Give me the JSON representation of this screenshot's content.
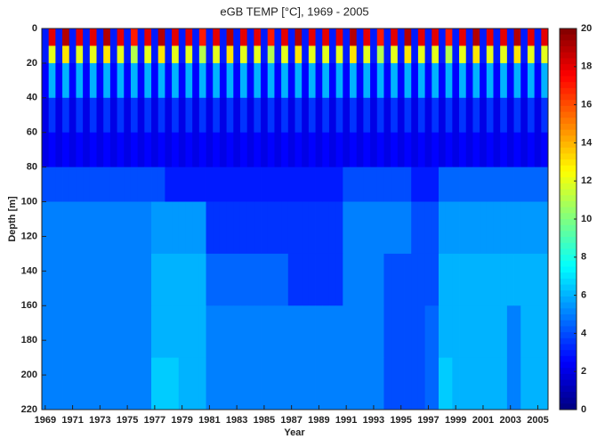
{
  "chart_data": {
    "type": "heatmap",
    "title": "eGB TEMP [°C], 1969 - 2005",
    "xlabel": "Year",
    "ylabel": "Depth [m]",
    "xlim": [
      1968.75,
      2005.75
    ],
    "ylim": [
      0,
      220
    ],
    "xticks": [
      1969,
      1971,
      1973,
      1975,
      1977,
      1979,
      1981,
      1983,
      1985,
      1987,
      1989,
      1991,
      1993,
      1995,
      1997,
      1999,
      2001,
      2003,
      2005
    ],
    "yticks": [
      0,
      20,
      40,
      60,
      80,
      100,
      120,
      140,
      160,
      180,
      200,
      220
    ],
    "colormap": "jet",
    "clim": [
      0,
      20
    ],
    "cticks": [
      0,
      2,
      4,
      6,
      8,
      10,
      12,
      14,
      16,
      18,
      20
    ],
    "xbins": [
      1968.75,
      1969.25,
      1969.75,
      1970.25,
      1970.75,
      1971.25,
      1971.75,
      1972.25,
      1972.75,
      1973.25,
      1973.75,
      1974.25,
      1974.75,
      1975.25,
      1975.75,
      1976.25,
      1976.75,
      1977.25,
      1977.75,
      1978.25,
      1978.75,
      1979.25,
      1979.75,
      1980.25,
      1980.75,
      1981.25,
      1981.75,
      1982.25,
      1982.75,
      1983.25,
      1983.75,
      1984.25,
      1984.75,
      1985.25,
      1985.75,
      1986.25,
      1986.75,
      1987.25,
      1987.75,
      1988.25,
      1988.75,
      1989.25,
      1989.75,
      1990.25,
      1990.75,
      1991.25,
      1991.75,
      1992.25,
      1992.75,
      1993.25,
      1993.75,
      1994.25,
      1994.75,
      1995.25,
      1995.75,
      1996.25,
      1996.75,
      1997.25,
      1997.75,
      1998.25,
      1998.75,
      1999.25,
      1999.75,
      2000.25,
      2000.75,
      2001.25,
      2001.75,
      2002.25,
      2002.75,
      2003.25,
      2003.75,
      2004.25,
      2004.75,
      2005.25,
      2005.75
    ],
    "ybins": [
      0,
      10,
      20,
      40,
      60,
      80,
      100,
      130,
      160,
      190,
      220
    ],
    "z": [
      [
        3,
        18,
        3,
        19,
        3,
        18,
        3,
        18,
        3,
        19,
        3,
        18,
        3,
        17,
        3,
        18,
        3,
        19,
        3,
        18,
        3,
        18,
        3,
        17,
        3,
        18,
        3,
        19,
        3,
        18,
        3,
        18,
        3,
        17,
        3,
        18,
        3,
        19,
        3,
        18,
        3,
        18,
        3,
        18,
        3,
        19,
        3,
        18,
        3,
        17,
        3,
        18,
        3,
        19,
        3,
        18,
        3,
        18,
        3,
        17,
        3,
        18,
        3,
        19,
        3,
        18,
        3,
        18,
        3,
        19,
        3,
        18,
        3,
        18
      ],
      [
        3,
        12,
        3,
        13,
        3,
        12,
        3,
        12,
        3,
        13,
        3,
        12,
        3,
        11,
        3,
        12,
        3,
        13,
        3,
        12,
        3,
        12,
        3,
        11,
        3,
        12,
        3,
        13,
        3,
        12,
        3,
        12,
        3,
        11,
        3,
        12,
        3,
        13,
        3,
        12,
        3,
        12,
        3,
        12,
        3,
        13,
        3,
        12,
        3,
        11,
        3,
        12,
        3,
        13,
        3,
        12,
        3,
        12,
        3,
        11,
        3,
        12,
        3,
        13,
        3,
        12,
        3,
        12,
        3,
        13,
        3,
        12,
        3,
        12
      ],
      [
        2.5,
        6,
        2.5,
        6,
        2.5,
        6,
        2.5,
        6,
        2.5,
        6,
        2.5,
        6,
        2.5,
        6,
        2.5,
        6,
        2.5,
        6,
        2.5,
        6,
        2.5,
        6,
        2.5,
        6,
        2.5,
        6,
        2.5,
        6,
        2.5,
        6,
        2.5,
        6,
        2.5,
        6,
        2.5,
        6,
        2.5,
        6,
        2.5,
        6,
        2.5,
        6,
        2.5,
        6,
        2.5,
        6,
        2.5,
        6,
        2.5,
        6,
        2.5,
        6,
        2.5,
        6,
        2.5,
        6,
        2.5,
        6,
        2.5,
        6,
        2.5,
        6,
        2.5,
        6,
        2.5,
        6,
        2.5,
        6,
        2.5,
        6,
        2.5,
        6,
        2.5,
        6
      ],
      [
        2,
        3.5,
        2,
        3.5,
        2,
        3.5,
        2,
        3.5,
        2,
        3.5,
        2,
        3.5,
        2,
        3.5,
        2,
        3.5,
        2,
        3.5,
        2,
        3.5,
        2,
        3.5,
        2,
        3.5,
        2,
        3.5,
        2,
        3.5,
        2,
        3.5,
        2,
        3.5,
        2,
        3.5,
        2,
        3.5,
        2,
        3.5,
        2,
        3.5,
        2,
        3.5,
        2,
        3.5,
        2,
        3.5,
        2,
        3.5,
        2,
        3.5,
        2,
        3.5,
        2,
        3.5,
        2,
        3.5,
        2,
        3.5,
        2,
        3.5,
        2,
        3.5,
        2,
        3.5,
        2,
        3.5,
        2,
        3.5,
        2,
        3.5,
        2,
        3.5,
        2,
        3.5
      ],
      [
        2,
        2.5,
        2,
        2.5,
        2,
        2.5,
        2,
        2.5,
        2,
        2.5,
        2,
        2.5,
        2,
        2.5,
        2,
        2.5,
        2,
        2.5,
        2,
        2.5,
        2,
        2.5,
        2,
        2.5,
        2,
        2.5,
        2,
        2.5,
        2,
        2.5,
        2,
        2.5,
        2,
        2.5,
        2,
        2.5,
        2,
        2.5,
        2,
        2.5,
        2,
        2.5,
        2,
        2.5,
        2,
        2.5,
        2,
        2.5,
        2,
        2.5,
        2,
        2.5,
        2,
        2.5,
        2,
        2.5,
        2,
        2.5,
        2,
        2.5,
        2,
        2.5,
        2,
        2.5,
        2,
        2.5,
        2,
        2.5,
        2,
        2.5,
        2,
        2.5,
        2,
        2.5
      ],
      [
        4,
        4,
        4,
        4,
        4,
        4,
        4,
        4,
        4,
        4,
        4,
        4,
        4,
        4,
        4,
        4,
        4,
        4,
        3,
        3,
        3,
        3,
        3,
        3,
        3,
        3,
        3,
        3,
        3,
        3,
        3,
        3,
        3,
        3,
        3,
        3,
        3,
        3,
        3,
        3,
        3,
        3,
        3,
        3,
        4,
        4,
        4,
        4,
        4,
        4,
        4,
        4,
        4,
        4,
        3,
        3,
        3,
        3,
        4.5,
        4.5,
        4.5,
        4.5,
        4.5,
        4.5,
        4.5,
        4.5,
        4.5,
        4.5,
        4.5,
        4.5,
        4.5,
        4.5,
        4.5,
        4.5
      ],
      [
        5,
        5,
        5,
        5,
        5,
        5,
        5,
        5,
        5,
        5,
        5,
        5,
        5,
        5,
        5,
        5,
        5.5,
        5.5,
        5.5,
        5.5,
        5.5,
        5.5,
        5.5,
        5.5,
        3.5,
        3.5,
        3.5,
        3.5,
        3.5,
        3.5,
        3.5,
        3.5,
        3.5,
        3.5,
        3.5,
        3.5,
        3.5,
        3.5,
        3.5,
        3.5,
        3.5,
        3.5,
        3.5,
        3.5,
        5,
        5,
        5,
        5,
        5,
        5,
        5,
        5,
        5,
        5,
        4,
        4,
        4,
        4,
        5.5,
        5.5,
        5.5,
        5.5,
        5.5,
        5.5,
        5.5,
        5.5,
        5.5,
        5.5,
        5.5,
        5.5,
        5.5,
        5.5,
        5.5,
        5.5
      ],
      [
        5,
        5,
        5,
        5,
        5,
        5,
        5,
        5,
        5,
        5,
        5,
        5,
        5,
        5,
        5,
        5,
        6,
        6,
        6,
        6,
        6,
        6,
        6,
        6,
        4.5,
        4.5,
        4.5,
        4.5,
        4.5,
        4.5,
        4.5,
        4.5,
        4.5,
        4.5,
        4.5,
        4.5,
        3.5,
        3.5,
        3.5,
        3.5,
        3.5,
        3.5,
        3.5,
        3.5,
        5,
        5,
        5,
        5,
        5,
        5,
        4,
        4,
        4,
        4,
        4,
        4,
        4,
        4,
        6,
        6,
        6,
        6,
        6,
        6,
        6,
        6,
        6,
        6,
        6,
        6,
        6,
        6,
        6,
        6
      ],
      [
        5,
        5,
        5,
        5,
        5,
        5,
        5,
        5,
        5,
        5,
        5,
        5,
        5,
        5,
        5,
        5,
        6,
        6,
        6,
        6,
        6,
        6,
        6,
        6,
        5,
        5,
        5,
        5,
        5,
        5,
        5,
        5,
        5,
        5,
        5,
        5,
        5,
        5,
        5,
        5,
        5,
        5,
        5,
        5,
        5,
        5,
        5,
        5,
        5,
        5,
        4,
        4,
        4,
        4,
        4,
        4,
        4.5,
        4.5,
        6,
        6,
        6,
        6,
        6,
        6,
        6,
        6,
        6,
        6,
        5,
        5,
        6,
        6,
        6,
        6
      ],
      [
        5,
        5,
        5,
        5,
        5,
        5,
        5,
        5,
        5,
        5,
        5,
        5,
        5,
        5,
        5,
        5,
        6.5,
        6.5,
        6.5,
        6.5,
        6,
        6,
        6,
        6,
        5,
        5,
        5,
        5,
        5,
        5,
        5,
        5,
        5,
        5,
        5,
        5,
        5,
        5,
        5,
        5,
        5,
        5,
        5,
        5,
        5,
        5,
        5,
        5,
        5,
        5,
        4,
        4,
        4,
        4,
        4,
        4,
        4.5,
        4.5,
        6.5,
        6.5,
        6,
        6,
        6,
        6,
        6,
        6,
        6,
        6,
        5,
        5,
        6,
        6,
        6,
        6
      ]
    ]
  }
}
